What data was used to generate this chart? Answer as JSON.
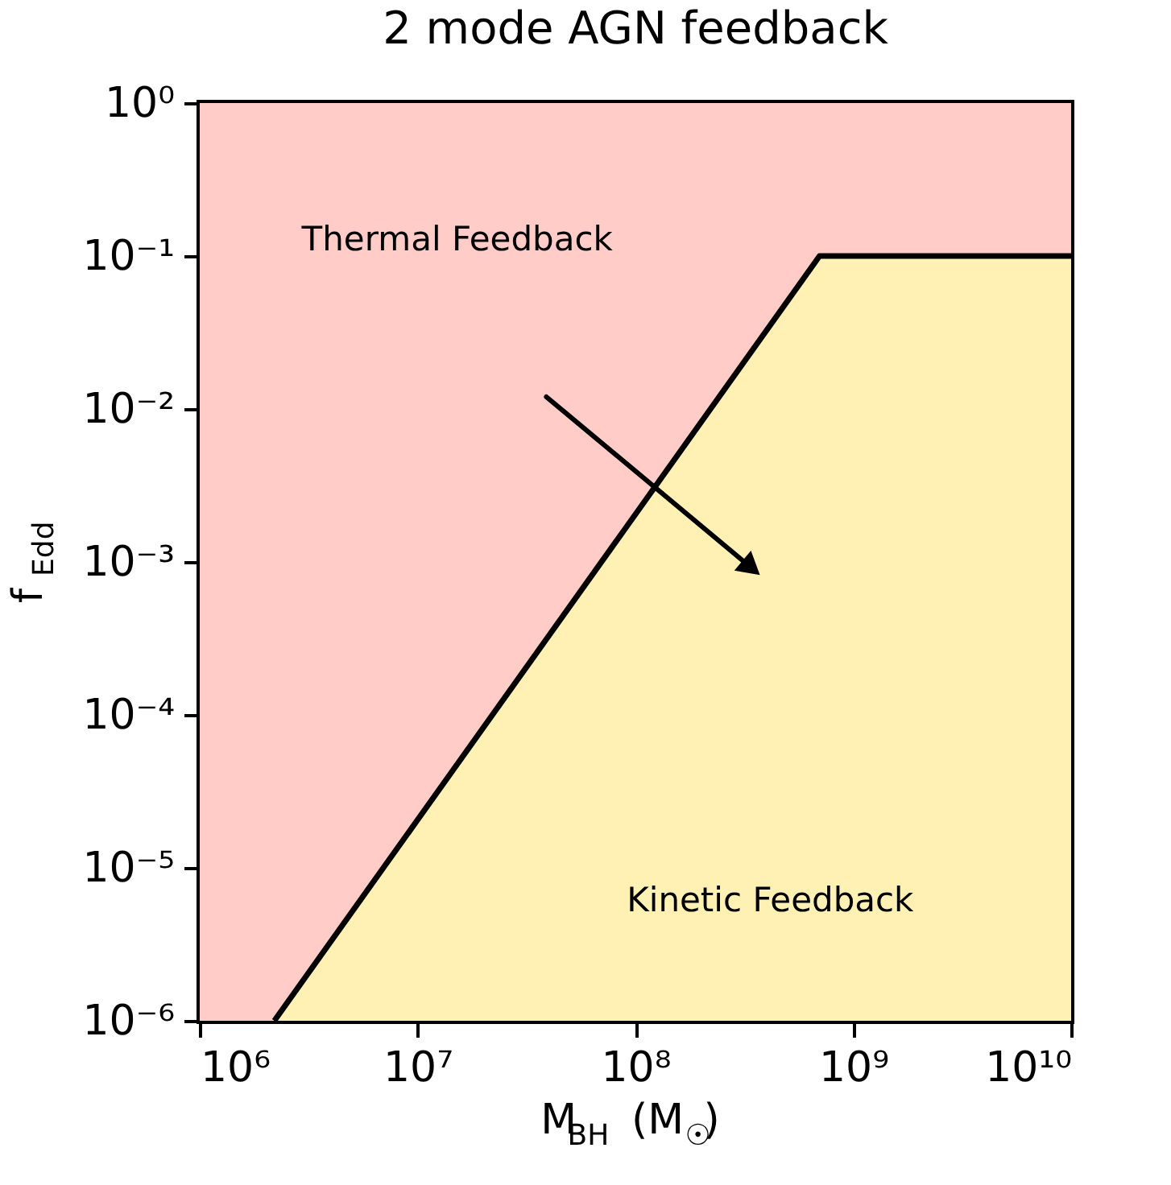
{
  "chart_data": {
    "type": "area",
    "title": "2 mode AGN feedback",
    "xlabel": "M$_{BH}$ (M$_{☉}$)",
    "ylabel": "f$_{Edd}$",
    "log": "xy",
    "grid": false,
    "xlim": [
      1000000,
      10000000000
    ],
    "ylim": [
      1e-06,
      1
    ],
    "xticks": [
      {
        "value": 1000000,
        "label": "10⁶"
      },
      {
        "value": 10000000,
        "label": "10⁷"
      },
      {
        "value": 100000000,
        "label": "10⁸"
      },
      {
        "value": 1000000000,
        "label": "10⁹"
      },
      {
        "value": 10000000000,
        "label": "10¹⁰"
      }
    ],
    "yticks": [
      {
        "value": 1e-06,
        "label": "10⁻⁶"
      },
      {
        "value": 1e-05,
        "label": "10⁻⁵"
      },
      {
        "value": 0.0001,
        "label": "10⁻⁴"
      },
      {
        "value": 0.001,
        "label": "10⁻³"
      },
      {
        "value": 0.01,
        "label": "10⁻²"
      },
      {
        "value": 0.1,
        "label": "10⁻¹"
      },
      {
        "value": 1,
        "label": "10⁰"
      }
    ],
    "bands": [
      {
        "axis": "y",
        "from": 1e-06,
        "to": 1,
        "color": "#ffccc7"
      }
    ],
    "series": [
      {
        "color": "#fff0b3",
        "x": [
          2200000,
          700000000,
          10000000000
        ],
        "values": [
          1e-06,
          0.1,
          0.1
        ]
      },
      {
        "type": "line",
        "marker": "triangle",
        "color": "#000000",
        "x": [
          39000000,
          330000000
        ],
        "values": [
          0.012,
          0.00095
        ]
      }
    ],
    "annotations": [
      "Thermal Feedback",
      "Kinetic Feedback"
    ]
  }
}
